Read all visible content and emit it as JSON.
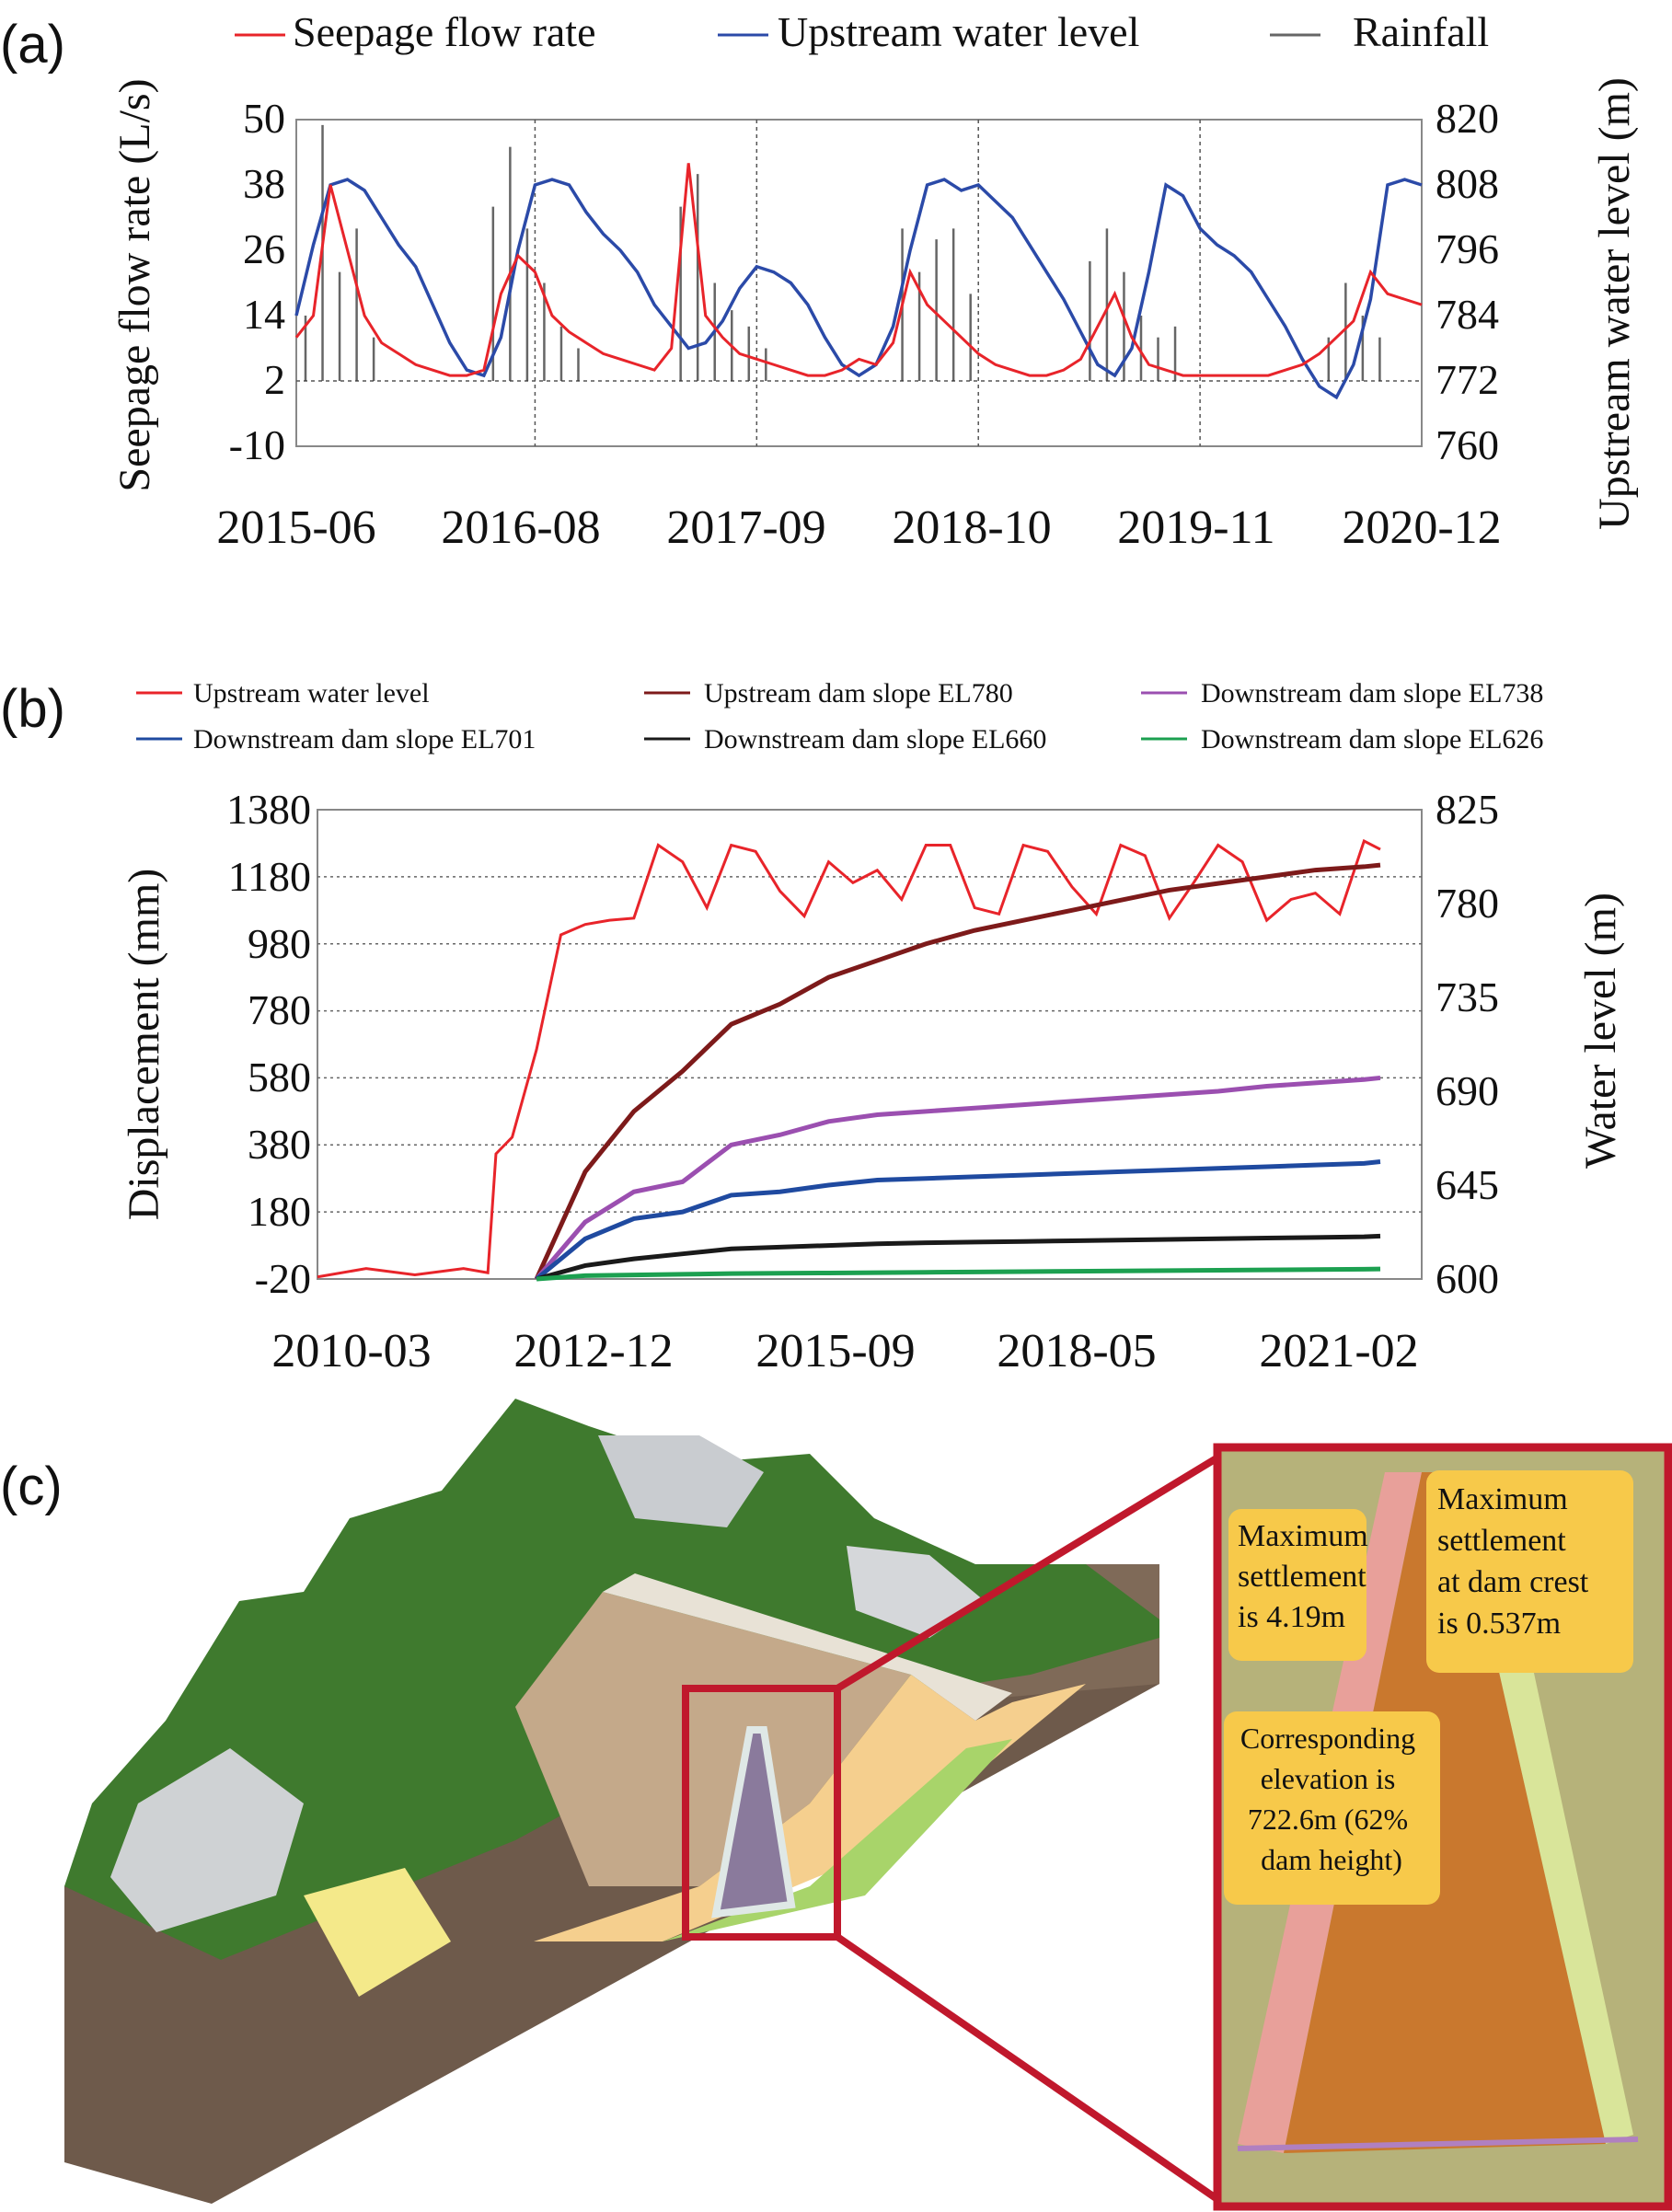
{
  "panels": {
    "a": {
      "label": "(a)"
    },
    "b": {
      "label": "(b)"
    },
    "c": {
      "label": "(c)"
    }
  },
  "chart_data": [
    {
      "id": "a",
      "type": "line",
      "legend": [
        "Seepage flow rate",
        "Upstream water level",
        "Rainfall"
      ],
      "legend_placement": "top",
      "colors": {
        "seepage": "#e8242a",
        "water": "#2b4aa8",
        "rain": "#333333",
        "grid": "#555555"
      },
      "ylabel": "Seepage flow rate (L/s)",
      "ylabel_right": "Upstream water level (m)",
      "yticks": [
        "50",
        "38",
        "26",
        "14",
        "2",
        "-10"
      ],
      "yticks_right": [
        "820",
        "808",
        "796",
        "784",
        "772",
        "760"
      ],
      "ylim": [
        -10,
        50
      ],
      "ylim_right": [
        760,
        820
      ],
      "xticks": [
        "2015-06",
        "2016-08",
        "2017-09",
        "2018-10",
        "2019-11",
        "2020-12"
      ],
      "xlim": [
        "2015-06",
        "2020-12"
      ],
      "grid": "dashed vertical at ticks, dashed horizontal at 2",
      "series": [
        {
          "name": "Upstream water level",
          "axis": "right",
          "x": [
            "2015-06",
            "2015-07",
            "2015-08",
            "2015-09",
            "2015-10",
            "2015-11",
            "2015-12",
            "2016-01",
            "2016-02",
            "2016-03",
            "2016-04",
            "2016-05",
            "2016-06",
            "2016-07",
            "2016-08",
            "2016-09",
            "2016-10",
            "2016-11",
            "2016-12",
            "2017-01",
            "2017-02",
            "2017-03",
            "2017-04",
            "2017-05",
            "2017-06",
            "2017-07",
            "2017-08",
            "2017-09",
            "2017-10",
            "2017-11",
            "2017-12",
            "2018-01",
            "2018-02",
            "2018-03",
            "2018-04",
            "2018-05",
            "2018-06",
            "2018-07",
            "2018-08",
            "2018-09",
            "2018-10",
            "2018-11",
            "2018-12",
            "2019-01",
            "2019-02",
            "2019-03",
            "2019-04",
            "2019-05",
            "2019-06",
            "2019-07",
            "2019-08",
            "2019-09",
            "2019-10",
            "2019-11",
            "2019-12",
            "2020-01",
            "2020-02",
            "2020-03",
            "2020-04",
            "2020-05",
            "2020-06",
            "2020-07",
            "2020-08",
            "2020-09",
            "2020-10",
            "2020-11",
            "2020-12"
          ],
          "values": [
            784,
            797,
            808,
            809,
            807,
            802,
            797,
            793,
            786,
            779,
            774,
            773,
            780,
            796,
            808,
            809,
            808,
            803,
            799,
            796,
            792,
            786,
            782,
            778,
            779,
            783,
            789,
            793,
            792,
            790,
            786,
            780,
            775,
            773,
            775,
            782,
            796,
            808,
            809,
            807,
            808,
            805,
            802,
            797,
            792,
            787,
            781,
            775,
            773,
            778,
            792,
            808,
            806,
            800,
            797,
            795,
            792,
            787,
            782,
            776,
            771,
            769,
            775,
            787,
            808,
            809,
            808
          ],
          "color": "#2b4aa8"
        },
        {
          "name": "Seepage flow rate",
          "axis": "left",
          "x": [
            "2015-06",
            "2015-07",
            "2015-08",
            "2015-09",
            "2015-10",
            "2015-11",
            "2015-12",
            "2016-01",
            "2016-02",
            "2016-03",
            "2016-04",
            "2016-05",
            "2016-06",
            "2016-07",
            "2016-08",
            "2016-09",
            "2016-10",
            "2016-11",
            "2016-12",
            "2017-01",
            "2017-02",
            "2017-03",
            "2017-04",
            "2017-05",
            "2017-06",
            "2017-07",
            "2017-08",
            "2017-09",
            "2017-10",
            "2017-11",
            "2017-12",
            "2018-01",
            "2018-02",
            "2018-03",
            "2018-04",
            "2018-05",
            "2018-06",
            "2018-07",
            "2018-08",
            "2018-09",
            "2018-10",
            "2018-11",
            "2018-12",
            "2019-01",
            "2019-02",
            "2019-03",
            "2019-04",
            "2019-05",
            "2019-06",
            "2019-07",
            "2019-08",
            "2019-09",
            "2019-10",
            "2019-11",
            "2019-12",
            "2020-01",
            "2020-02",
            "2020-03",
            "2020-04",
            "2020-05",
            "2020-06",
            "2020-07",
            "2020-08",
            "2020-09",
            "2020-10",
            "2020-11",
            "2020-12"
          ],
          "values": [
            10,
            14,
            38,
            26,
            14,
            9,
            7,
            5,
            4,
            3,
            3,
            4,
            18,
            25,
            22,
            14,
            11,
            9,
            7,
            6,
            5,
            4,
            8,
            42,
            14,
            10,
            7,
            6,
            5,
            4,
            3,
            3,
            4,
            6,
            5,
            9,
            22,
            16,
            13,
            10,
            7,
            5,
            4,
            3,
            3,
            4,
            6,
            12,
            18,
            10,
            5,
            4,
            3,
            3,
            3,
            3,
            3,
            3,
            4,
            5,
            7,
            10,
            13,
            22,
            18,
            17,
            16
          ],
          "color": "#e8242a"
        },
        {
          "name": "Rainfall",
          "type": "bar",
          "baseline": 2,
          "x": [
            "2015-06",
            "2015-07",
            "2015-08",
            "2015-09",
            "2015-10",
            "2016-05",
            "2016-06",
            "2016-07",
            "2016-08",
            "2016-09",
            "2016-10",
            "2017-04",
            "2017-05",
            "2017-06",
            "2017-07",
            "2017-08",
            "2017-09",
            "2018-05",
            "2018-06",
            "2018-07",
            "2018-08",
            "2018-09",
            "2019-04",
            "2019-05",
            "2019-06",
            "2019-07",
            "2019-08",
            "2019-09",
            "2020-06",
            "2020-07",
            "2020-08",
            "2020-09"
          ],
          "values": [
            14,
            49,
            22,
            30,
            10,
            34,
            45,
            30,
            20,
            12,
            8,
            34,
            40,
            20,
            15,
            12,
            8,
            30,
            22,
            28,
            30,
            18,
            24,
            30,
            22,
            14,
            10,
            12,
            10,
            20,
            14,
            10
          ],
          "color": "#333333"
        }
      ]
    },
    {
      "id": "b",
      "type": "line",
      "legend": [
        "Upstream water level",
        "Upstream dam slope EL780",
        "Downstream dam slope EL738",
        "Downstream dam slope EL701",
        "Downstream dam slope EL660",
        "Downstream dam slope EL626"
      ],
      "legend_placement": "top",
      "ylabel": "Displacement (mm)",
      "ylabel_right": "Water level (m)",
      "yticks": [
        "1380",
        "1180",
        "980",
        "780",
        "580",
        "380",
        "180",
        "-20"
      ],
      "yticks_right": [
        "825",
        "780",
        "735",
        "690",
        "645",
        "600"
      ],
      "ylim": [
        -20,
        1380
      ],
      "ylim_right": [
        600,
        825
      ],
      "xticks": [
        "2010-03",
        "2012-12",
        "2015-09",
        "2018-05",
        "2021-02"
      ],
      "xlim": [
        "2010-03",
        "2021-02"
      ],
      "grid": "dashed horizontal at ticks",
      "series": [
        {
          "name": "Upstream water level",
          "axis": "right",
          "color": "#e8242a",
          "x": [
            "2010-03",
            "2010-09",
            "2011-03",
            "2011-09",
            "2011-12",
            "2012-01",
            "2012-03",
            "2012-06",
            "2012-09",
            "2012-12",
            "2013-03",
            "2013-06",
            "2013-09",
            "2013-12",
            "2014-03",
            "2014-06",
            "2014-09",
            "2014-12",
            "2015-03",
            "2015-06",
            "2015-09",
            "2015-12",
            "2016-03",
            "2016-06",
            "2016-09",
            "2016-12",
            "2017-03",
            "2017-06",
            "2017-09",
            "2017-12",
            "2018-03",
            "2018-06",
            "2018-09",
            "2018-12",
            "2019-03",
            "2019-06",
            "2019-09",
            "2019-12",
            "2020-03",
            "2020-06",
            "2020-09",
            "2020-12",
            "2021-02"
          ],
          "values": [
            601,
            605,
            602,
            605,
            603,
            660,
            668,
            710,
            765,
            770,
            772,
            773,
            808,
            800,
            778,
            808,
            805,
            786,
            774,
            800,
            790,
            796,
            782,
            808,
            808,
            778,
            775,
            808,
            805,
            788,
            775,
            808,
            803,
            773,
            790,
            808,
            800,
            772,
            782,
            785,
            775,
            810,
            806
          ]
        },
        {
          "name": "Upstream dam slope EL780",
          "axis": "left",
          "color": "#7d1a1a",
          "x": [
            "2012-06",
            "2012-12",
            "2013-06",
            "2013-12",
            "2014-06",
            "2014-12",
            "2015-06",
            "2015-12",
            "2016-06",
            "2016-12",
            "2017-06",
            "2017-12",
            "2018-06",
            "2018-12",
            "2019-06",
            "2019-12",
            "2020-06",
            "2020-12",
            "2021-02"
          ],
          "values": [
            -20,
            300,
            480,
            600,
            740,
            800,
            880,
            930,
            980,
            1020,
            1050,
            1080,
            1110,
            1140,
            1160,
            1180,
            1200,
            1210,
            1215
          ]
        },
        {
          "name": "Downstream dam slope EL738",
          "axis": "left",
          "color": "#9b4fb0",
          "x": [
            "2012-06",
            "2012-12",
            "2013-06",
            "2013-12",
            "2014-06",
            "2014-12",
            "2015-06",
            "2015-12",
            "2016-06",
            "2016-12",
            "2017-06",
            "2017-12",
            "2018-06",
            "2018-12",
            "2019-06",
            "2019-12",
            "2020-06",
            "2020-12",
            "2021-02"
          ],
          "values": [
            -20,
            150,
            240,
            270,
            380,
            410,
            450,
            470,
            480,
            490,
            500,
            510,
            520,
            530,
            540,
            555,
            565,
            575,
            580
          ]
        },
        {
          "name": "Downstream dam slope EL701",
          "axis": "left",
          "color": "#1f4aa0",
          "x": [
            "2012-06",
            "2012-12",
            "2013-06",
            "2013-12",
            "2014-06",
            "2014-12",
            "2015-06",
            "2015-12",
            "2016-06",
            "2016-12",
            "2017-06",
            "2017-12",
            "2018-06",
            "2018-12",
            "2019-06",
            "2019-12",
            "2020-06",
            "2020-12",
            "2021-02"
          ],
          "values": [
            -20,
            100,
            160,
            180,
            230,
            240,
            260,
            275,
            280,
            285,
            290,
            295,
            300,
            305,
            310,
            315,
            320,
            325,
            330
          ]
        },
        {
          "name": "Downstream dam slope EL660",
          "axis": "left",
          "color": "#1a1a1a",
          "x": [
            "2012-06",
            "2012-12",
            "2013-06",
            "2013-12",
            "2014-06",
            "2014-12",
            "2015-06",
            "2015-12",
            "2016-06",
            "2016-12",
            "2017-06",
            "2017-12",
            "2018-06",
            "2018-12",
            "2019-06",
            "2019-12",
            "2020-06",
            "2020-12",
            "2021-02"
          ],
          "values": [
            -20,
            20,
            40,
            55,
            70,
            75,
            80,
            85,
            88,
            90,
            92,
            94,
            96,
            98,
            100,
            102,
            104,
            106,
            108
          ]
        },
        {
          "name": "Downstream dam slope EL626",
          "axis": "left",
          "color": "#1ca050",
          "x": [
            "2012-06",
            "2012-12",
            "2013-06",
            "2013-12",
            "2014-06",
            "2014-12",
            "2015-06",
            "2015-12",
            "2016-06",
            "2016-12",
            "2017-06",
            "2017-12",
            "2018-06",
            "2018-12",
            "2019-06",
            "2019-12",
            "2020-06",
            "2020-12",
            "2021-02"
          ],
          "values": [
            -20,
            -10,
            -8,
            -6,
            -4,
            -3,
            -2,
            -1,
            0,
            1,
            2,
            3,
            4,
            5,
            6,
            7,
            8,
            9,
            10
          ]
        }
      ]
    }
  ],
  "panel_c": {
    "annotations": [
      "Maximum settlement is 4.19m",
      "Maximum settlement at dam crest is 0.537m",
      "Corresponding elevation is 722.6m (62% dam height)"
    ],
    "annotation_lines": {
      "a1": [
        "Maximum",
        "settlement",
        "is 4.19m"
      ],
      "a2": [
        "Maximum",
        "settlement",
        "at dam crest",
        "is 0.537m"
      ],
      "a3": [
        "Corresponding",
        "elevation is",
        "722.6m (62%",
        "dam height)"
      ]
    },
    "colors": {
      "frame": "#c0182c",
      "callout": "#f7c94a",
      "core": "#8a7a9c",
      "shell": "#f5cf8e",
      "grass": "#3f7a2e"
    }
  }
}
